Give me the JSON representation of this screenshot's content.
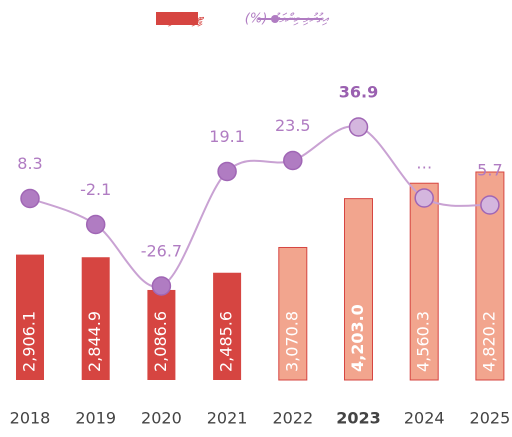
{
  "chart_data": {
    "type": "bar",
    "categories": [
      "2018",
      "2019",
      "2020",
      "2021",
      "2022",
      "2023",
      "2024",
      "2025"
    ],
    "highlight": "2023",
    "ylim": [
      0,
      5000
    ],
    "y2lim": [
      -40,
      45
    ],
    "series": [
      {
        "name": "ޓީޖީއެސްޓީ",
        "color": "#d64541",
        "colors": [
          "#d64541",
          "#d64541",
          "#d64541",
          "#d64541",
          "#f2a58e",
          "#f2a58e",
          "#f2a58e",
          "#f2a58e"
        ],
        "values": [
          2906.1,
          2844.9,
          2086.6,
          2485.6,
          3070.8,
          4203.0,
          4560.3,
          4820.2
        ],
        "value_labels": [
          "2,906.1",
          "2,844.9",
          "2,086.6",
          "2,485.6",
          "3,070.8",
          "4,203.0",
          "4,560.3",
          "4,820.2"
        ]
      },
      {
        "name": "އިތުރުވި މިންވަރު (%)",
        "type": "line",
        "axis": "y2",
        "color": "#c9a2d3",
        "colors": [
          "#b07cc2",
          "#b07cc2",
          "#b07cc2",
          "#b07cc2",
          "#b07cc2",
          "#d4b6de",
          "#d4b6de",
          "#d4b6de"
        ],
        "values": [
          8.3,
          -2.1,
          -26.7,
          19.1,
          23.5,
          36.9,
          8.5,
          5.7
        ],
        "value_labels": [
          "8.3",
          "-2.1",
          "-26.7",
          "19.1",
          "23.5",
          "36.9",
          "…",
          "5.7"
        ]
      }
    ]
  }
}
